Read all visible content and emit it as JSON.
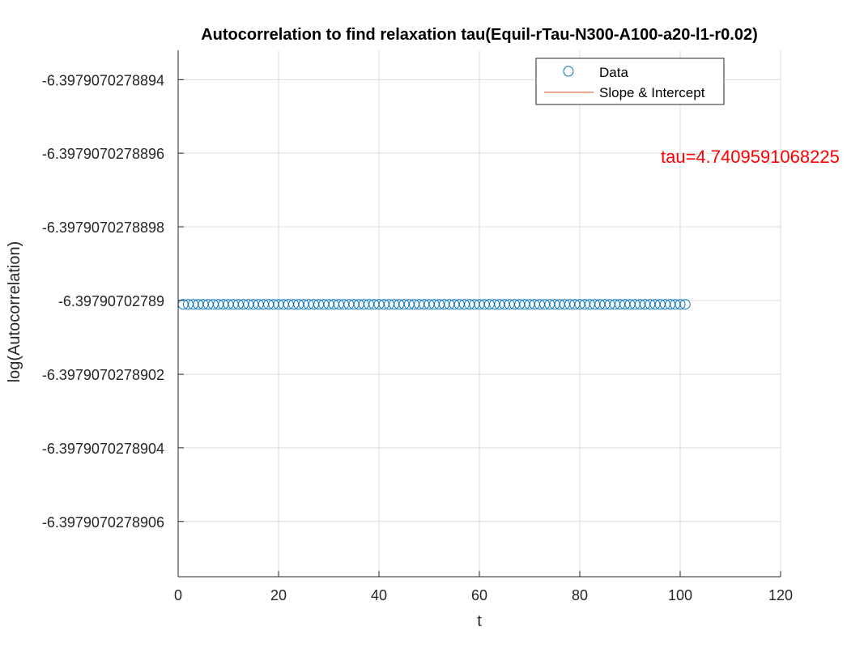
{
  "chart_data": {
    "type": "scatter",
    "title": "Autocorrelation to find relaxation tau(Equil-rTau-N300-A100-a20-l1-r0.02)",
    "xlabel": "t",
    "ylabel": "log(Autocorrelation)",
    "xlim": [
      0,
      120
    ],
    "ylim": [
      -6.39790702789075,
      -6.39790702788932
    ],
    "grid": true,
    "legend_placement": "top-right",
    "x_ticks": [
      {
        "value": 0,
        "label": "0"
      },
      {
        "value": 20,
        "label": "20"
      },
      {
        "value": 40,
        "label": "40"
      },
      {
        "value": 60,
        "label": "60"
      },
      {
        "value": 80,
        "label": "80"
      },
      {
        "value": 100,
        "label": "100"
      },
      {
        "value": 120,
        "label": "120"
      }
    ],
    "y_ticks": [
      {
        "value": -6.3979070278894,
        "label": "-6.3979070278894"
      },
      {
        "value": -6.3979070278896,
        "label": "-6.3979070278896"
      },
      {
        "value": -6.3979070278898,
        "label": "-6.3979070278898"
      },
      {
        "value": -6.39790702789,
        "label": "-6.39790702789"
      },
      {
        "value": -6.3979070278902,
        "label": "-6.3979070278902"
      },
      {
        "value": -6.3979070278904,
        "label": "-6.3979070278904"
      },
      {
        "value": -6.3979070278906,
        "label": "-6.3979070278906"
      }
    ],
    "series": [
      {
        "name": "Data",
        "style": "circle-markers",
        "color": "#0072BD",
        "x_start": 1,
        "x_end": 101,
        "x_step": 1,
        "y": -6.39790702789001
      },
      {
        "name": "Slope & Intercept",
        "style": "line",
        "color": "#D95319"
      }
    ],
    "annotation": {
      "text": "tau=4.7409591068225",
      "color": "#ff0000"
    }
  }
}
